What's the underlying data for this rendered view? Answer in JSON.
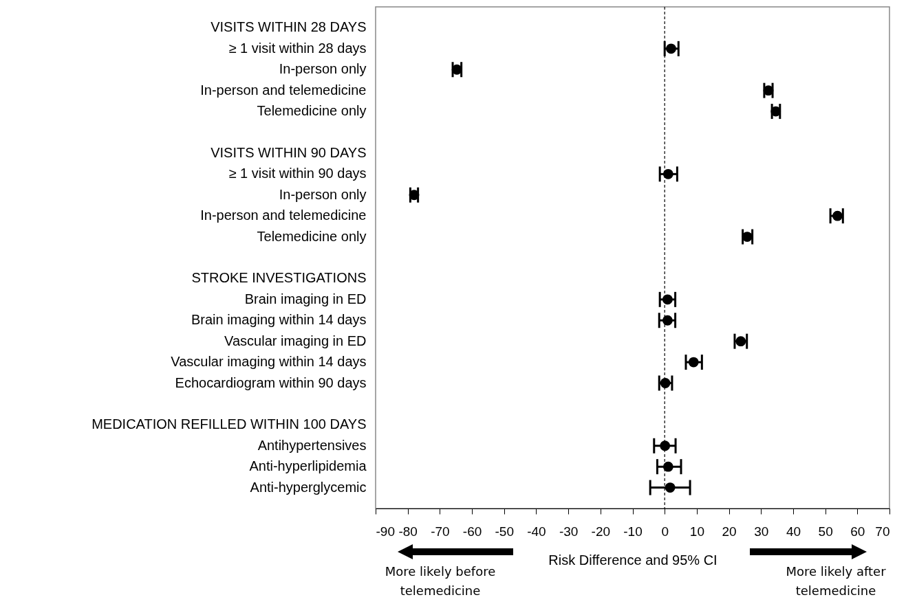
{
  "chart_data": {
    "type": "scatter",
    "orientation": "horizontal",
    "xlabel": "Risk Difference and 95% CI",
    "categories": [
      "VISITS WITHIN 28 DAYS",
      "≥ 1 visit within 28 days",
      "In-person only",
      "In-person and telemedicine",
      "Telemedicine only",
      null,
      "VISITS WITHIN 90 DAYS",
      "≥ 1 visit within 90 days",
      "In-person only",
      "In-person and telemedicine",
      "Telemedicine only",
      null,
      "STROKE INVESTIGATIONS",
      "Brain imaging in ED",
      "Brain imaging within 14 days",
      "Vascular imaging in ED",
      "Vascular imaging within 14 days",
      "Echocardiogram within 90 days",
      null,
      "MEDICATION REFILLED WITHIN 100 DAYS",
      "Antihypertensives",
      "Anti-hyperlipidemia",
      "Anti-hyperglycemic"
    ],
    "series": [
      {
        "color": "#000000",
        "marker": "circle",
        "values": [
          null,
          2,
          -64.7,
          32.3,
          34.6,
          null,
          null,
          1.1,
          -78,
          53.8,
          25.7,
          null,
          null,
          0.9,
          0.9,
          23.7,
          9,
          0.2,
          null,
          null,
          0.1,
          1.1,
          1.7
        ],
        "errors": [
          null,
          [
            0,
            4.3
          ],
          [
            -66,
            -63.3
          ],
          [
            31,
            33.6
          ],
          [
            33.4,
            35.9
          ],
          null,
          null,
          [
            -1.5,
            3.9
          ],
          [
            -79.2,
            -76.8
          ],
          [
            51.6,
            55.5
          ],
          [
            24.3,
            27.3
          ],
          null,
          null,
          [
            -1.5,
            3.3
          ],
          [
            -1.7,
            3.3
          ],
          [
            21.8,
            25.6
          ],
          [
            6.6,
            11.6
          ],
          [
            -1.7,
            2.3
          ],
          null,
          null,
          [
            -3.3,
            3.4
          ],
          [
            -2.3,
            5.1
          ],
          [
            -4.5,
            7.9
          ]
        ]
      }
    ],
    "xlim": [
      -90,
      70
    ],
    "xticks": [
      -90,
      -80,
      -70,
      -60,
      -50,
      -40,
      -30,
      -20,
      -10,
      0,
      10,
      20,
      30,
      40,
      50,
      60,
      70
    ],
    "ref_lines": [
      {
        "axis": "x",
        "value": 0,
        "line_style": "dashed",
        "color": "#000000"
      }
    ],
    "annotations": [
      "More likely before telemedicine",
      "More likely after telemedicine"
    ]
  }
}
